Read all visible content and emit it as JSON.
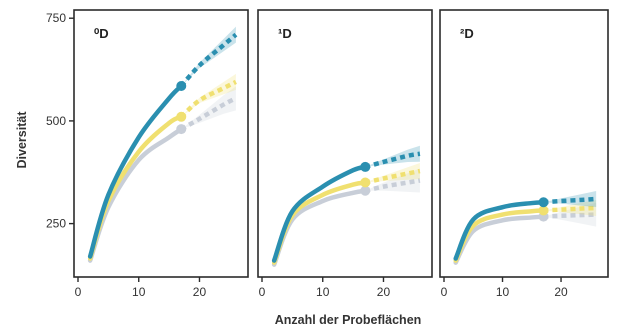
{
  "chart_data": [
    {
      "type": "line",
      "panel_label": "⁰D",
      "ylabel": "Diversität",
      "xlabel": "",
      "xlim": [
        0,
        27
      ],
      "ylim": [
        120,
        770
      ],
      "x_ticks": [
        0,
        10,
        20
      ],
      "y_ticks": [
        250,
        500,
        750
      ],
      "interpolated_until": 17,
      "series": [
        {
          "color": "#2a8fb0",
          "observed": [
            [
              2,
              170
            ],
            [
              5,
              320
            ],
            [
              10,
              460
            ],
            [
              15,
              555
            ],
            [
              17,
              585
            ]
          ],
          "extrapolated": [
            [
              17,
              585
            ],
            [
              20,
              635
            ],
            [
              24,
              685
            ],
            [
              26,
              710
            ]
          ]
        },
        {
          "color": "#f0e070",
          "observed": [
            [
              2,
              165
            ],
            [
              5,
              305
            ],
            [
              10,
              425
            ],
            [
              15,
              495
            ],
            [
              17,
              510
            ]
          ],
          "extrapolated": [
            [
              17,
              510
            ],
            [
              20,
              550
            ],
            [
              24,
              580
            ],
            [
              26,
              595
            ]
          ]
        },
        {
          "color": "#c8ced8",
          "observed": [
            [
              2,
              160
            ],
            [
              5,
              290
            ],
            [
              10,
              405
            ],
            [
              15,
              460
            ],
            [
              17,
              480
            ]
          ],
          "extrapolated": [
            [
              17,
              480
            ],
            [
              20,
              505
            ],
            [
              24,
              540
            ],
            [
              26,
              555
            ]
          ]
        }
      ]
    },
    {
      "type": "line",
      "panel_label": "¹D",
      "ylabel": "",
      "xlabel": "Anzahl der Probeflächen",
      "xlim": [
        0,
        27
      ],
      "ylim": [
        120,
        770
      ],
      "x_ticks": [
        0,
        10,
        20
      ],
      "y_ticks": [],
      "interpolated_until": 17,
      "series": [
        {
          "color": "#2a8fb0",
          "observed": [
            [
              2,
              160
            ],
            [
              5,
              280
            ],
            [
              10,
              340
            ],
            [
              15,
              380
            ],
            [
              17,
              388
            ]
          ],
          "extrapolated": [
            [
              17,
              388
            ],
            [
              20,
              400
            ],
            [
              24,
              415
            ],
            [
              26,
              420
            ]
          ]
        },
        {
          "color": "#f0e070",
          "observed": [
            [
              2,
              155
            ],
            [
              5,
              270
            ],
            [
              10,
              320
            ],
            [
              15,
              345
            ],
            [
              17,
              350
            ]
          ],
          "extrapolated": [
            [
              17,
              350
            ],
            [
              20,
              360
            ],
            [
              24,
              372
            ],
            [
              26,
              378
            ]
          ]
        },
        {
          "color": "#c8ced8",
          "observed": [
            [
              2,
              150
            ],
            [
              5,
              260
            ],
            [
              10,
              305
            ],
            [
              15,
              325
            ],
            [
              17,
              330
            ]
          ],
          "extrapolated": [
            [
              17,
              330
            ],
            [
              20,
              340
            ],
            [
              24,
              350
            ],
            [
              26,
              355
            ]
          ]
        }
      ]
    },
    {
      "type": "line",
      "panel_label": "²D",
      "ylabel": "",
      "xlabel": "",
      "xlim": [
        0,
        27
      ],
      "ylim": [
        120,
        770
      ],
      "x_ticks": [
        0,
        10,
        20
      ],
      "y_ticks": [],
      "interpolated_until": 17,
      "series": [
        {
          "color": "#2a8fb0",
          "observed": [
            [
              2,
              165
            ],
            [
              5,
              260
            ],
            [
              10,
              290
            ],
            [
              15,
              300
            ],
            [
              17,
              302
            ]
          ],
          "extrapolated": [
            [
              17,
              302
            ],
            [
              20,
              305
            ],
            [
              24,
              308
            ],
            [
              26,
              310
            ]
          ]
        },
        {
          "color": "#f0e070",
          "observed": [
            [
              2,
              160
            ],
            [
              5,
              245
            ],
            [
              10,
              272
            ],
            [
              15,
              280
            ],
            [
              17,
              282
            ]
          ],
          "extrapolated": [
            [
              17,
              282
            ],
            [
              20,
              284
            ],
            [
              24,
              287
            ],
            [
              26,
              288
            ]
          ]
        },
        {
          "color": "#c8ced8",
          "observed": [
            [
              2,
              155
            ],
            [
              5,
              232
            ],
            [
              10,
              258
            ],
            [
              15,
              265
            ],
            [
              17,
              267
            ]
          ],
          "extrapolated": [
            [
              17,
              267
            ],
            [
              20,
              269
            ],
            [
              24,
              271
            ],
            [
              26,
              272
            ]
          ]
        }
      ]
    }
  ]
}
